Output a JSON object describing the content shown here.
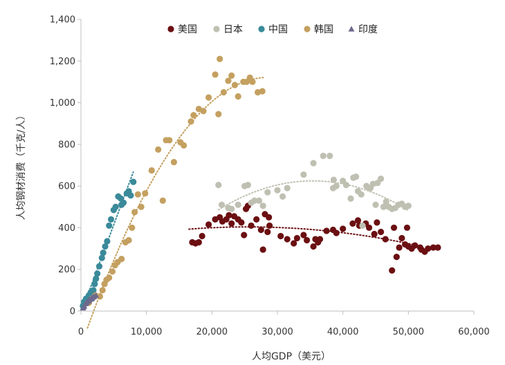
{
  "chart_data": {
    "type": "scatter",
    "title": "",
    "xlabel": "人均GDP（美元）",
    "ylabel": "人均钢材消费（千克/人）",
    "xlim": [
      0,
      60000
    ],
    "ylim": [
      0,
      1400
    ],
    "xticks": [
      0,
      10000,
      20000,
      30000,
      40000,
      50000,
      60000
    ],
    "xtick_labels": [
      "0",
      "10,000",
      "20,000",
      "30,000",
      "40,000",
      "50,000",
      "60,000"
    ],
    "yticks": [
      0,
      200,
      400,
      600,
      800,
      1000,
      1200,
      1400
    ],
    "ytick_labels": [
      "0",
      "200",
      "400",
      "600",
      "800",
      "1,000",
      "1,200",
      "1,400"
    ],
    "legend_position": "top-center",
    "series": [
      {
        "name": "美国",
        "color": "#6b0f12",
        "marker": "circle",
        "trendline": {
          "type": "poly2",
          "x_range": [
            16500,
            52000
          ]
        },
        "points": [
          [
            17000,
            330
          ],
          [
            17500,
            325
          ],
          [
            18000,
            330
          ],
          [
            18500,
            360
          ],
          [
            19500,
            415
          ],
          [
            20500,
            440
          ],
          [
            21200,
            450
          ],
          [
            21600,
            430
          ],
          [
            22200,
            440
          ],
          [
            22600,
            460
          ],
          [
            23000,
            420
          ],
          [
            23400,
            455
          ],
          [
            24000,
            440
          ],
          [
            24500,
            425
          ],
          [
            24900,
            365
          ],
          [
            25200,
            490
          ],
          [
            25500,
            505
          ],
          [
            26000,
            410
          ],
          [
            26800,
            440
          ],
          [
            27500,
            390
          ],
          [
            27800,
            295
          ],
          [
            28100,
            465
          ],
          [
            28500,
            380
          ],
          [
            28700,
            450
          ],
          [
            28800,
            410
          ],
          [
            30500,
            360
          ],
          [
            31500,
            345
          ],
          [
            32500,
            325
          ],
          [
            33000,
            350
          ],
          [
            34000,
            365
          ],
          [
            34500,
            340
          ],
          [
            35500,
            310
          ],
          [
            35800,
            345
          ],
          [
            36200,
            330
          ],
          [
            36500,
            345
          ],
          [
            37500,
            385
          ],
          [
            38500,
            390
          ],
          [
            39000,
            375
          ],
          [
            40000,
            395
          ],
          [
            41500,
            420
          ],
          [
            42300,
            435
          ],
          [
            42500,
            410
          ],
          [
            43500,
            420
          ],
          [
            44000,
            400
          ],
          [
            44800,
            370
          ],
          [
            45200,
            425
          ],
          [
            45800,
            380
          ],
          [
            46500,
            345
          ],
          [
            47500,
            195
          ],
          [
            47800,
            400
          ],
          [
            48200,
            260
          ],
          [
            48600,
            305
          ],
          [
            49000,
            350
          ],
          [
            49500,
            320
          ],
          [
            49800,
            400
          ],
          [
            50000,
            310
          ],
          [
            50500,
            300
          ],
          [
            51000,
            315
          ],
          [
            51800,
            305
          ],
          [
            52000,
            295
          ],
          [
            52500,
            285
          ],
          [
            53000,
            300
          ],
          [
            53800,
            305
          ],
          [
            54500,
            305
          ]
        ]
      },
      {
        "name": "日本",
        "color": "#bfc0b2",
        "marker": "circle",
        "trendline": {
          "type": "poly2",
          "x_range": [
            21000,
            50000
          ]
        },
        "points": [
          [
            21000,
            605
          ],
          [
            21500,
            510
          ],
          [
            22500,
            495
          ],
          [
            23000,
            490
          ],
          [
            24000,
            510
          ],
          [
            25000,
            600
          ],
          [
            25500,
            605
          ],
          [
            26000,
            520
          ],
          [
            26500,
            530
          ],
          [
            27200,
            530
          ],
          [
            27800,
            505
          ],
          [
            28500,
            570
          ],
          [
            30000,
            580
          ],
          [
            30800,
            550
          ],
          [
            31500,
            590
          ],
          [
            34000,
            655
          ],
          [
            35500,
            710
          ],
          [
            37000,
            745
          ],
          [
            38000,
            745
          ],
          [
            38500,
            590
          ],
          [
            38600,
            630
          ],
          [
            39000,
            600
          ],
          [
            40000,
            625
          ],
          [
            40500,
            605
          ],
          [
            41200,
            540
          ],
          [
            41600,
            640
          ],
          [
            42000,
            645
          ],
          [
            42300,
            575
          ],
          [
            42800,
            560
          ],
          [
            43000,
            410
          ],
          [
            43600,
            600
          ],
          [
            44000,
            590
          ],
          [
            44200,
            590
          ],
          [
            44600,
            610
          ],
          [
            45000,
            510
          ],
          [
            45300,
            615
          ],
          [
            45800,
            635
          ],
          [
            46200,
            500
          ],
          [
            46600,
            525
          ],
          [
            47000,
            500
          ],
          [
            47500,
            490
          ],
          [
            48000,
            495
          ],
          [
            48500,
            510
          ],
          [
            49000,
            515
          ],
          [
            49500,
            500
          ],
          [
            50000,
            505
          ]
        ]
      },
      {
        "name": "中国",
        "color": "#3a8a9a",
        "marker": "circle",
        "trendline": {
          "type": "linear",
          "x_range": [
            200,
            8000
          ]
        },
        "points": [
          [
            300,
            25
          ],
          [
            500,
            45
          ],
          [
            800,
            60
          ],
          [
            1200,
            75
          ],
          [
            1500,
            90
          ],
          [
            1900,
            100
          ],
          [
            2100,
            130
          ],
          [
            2300,
            155
          ],
          [
            2500,
            180
          ],
          [
            2800,
            215
          ],
          [
            3200,
            255
          ],
          [
            3400,
            280
          ],
          [
            3700,
            310
          ],
          [
            4000,
            335
          ],
          [
            4300,
            410
          ],
          [
            4600,
            440
          ],
          [
            5000,
            485
          ],
          [
            5300,
            500
          ],
          [
            5700,
            550
          ],
          [
            6200,
            510
          ],
          [
            6500,
            520
          ],
          [
            7000,
            565
          ],
          [
            7300,
            575
          ],
          [
            7600,
            555
          ],
          [
            8000,
            620
          ],
          [
            6100,
            540
          ]
        ]
      },
      {
        "name": "韩国",
        "color": "#c4a060",
        "marker": "circle",
        "trendline": {
          "type": "poly2",
          "x_range": [
            1000,
            28000
          ]
        },
        "points": [
          [
            1200,
            40
          ],
          [
            1700,
            60
          ],
          [
            2200,
            75
          ],
          [
            2900,
            70
          ],
          [
            3300,
            100
          ],
          [
            3600,
            130
          ],
          [
            3900,
            150
          ],
          [
            4300,
            160
          ],
          [
            4800,
            190
          ],
          [
            5200,
            220
          ],
          [
            5600,
            235
          ],
          [
            6200,
            250
          ],
          [
            6800,
            330
          ],
          [
            7300,
            340
          ],
          [
            7800,
            400
          ],
          [
            8200,
            475
          ],
          [
            8700,
            560
          ],
          [
            9200,
            500
          ],
          [
            9800,
            565
          ],
          [
            10800,
            675
          ],
          [
            11800,
            775
          ],
          [
            12500,
            530
          ],
          [
            13000,
            820
          ],
          [
            13500,
            820
          ],
          [
            14200,
            715
          ],
          [
            15200,
            810
          ],
          [
            15700,
            795
          ],
          [
            16800,
            910
          ],
          [
            17200,
            940
          ],
          [
            18000,
            970
          ],
          [
            18700,
            960
          ],
          [
            19500,
            1025
          ],
          [
            20500,
            1135
          ],
          [
            21000,
            945
          ],
          [
            21200,
            1210
          ],
          [
            21800,
            1050
          ],
          [
            22500,
            1105
          ],
          [
            23000,
            1130
          ],
          [
            23500,
            1085
          ],
          [
            24000,
            1030
          ],
          [
            24800,
            1100
          ],
          [
            25300,
            1100
          ],
          [
            25800,
            1120
          ],
          [
            26200,
            1100
          ],
          [
            27000,
            1050
          ],
          [
            27700,
            1055
          ]
        ]
      },
      {
        "name": "印度",
        "color": "#6d6a8e",
        "marker": "triangle",
        "trendline": null,
        "points": [
          [
            300,
            15
          ],
          [
            500,
            25
          ],
          [
            700,
            35
          ],
          [
            900,
            42
          ],
          [
            1100,
            50
          ],
          [
            1300,
            55
          ],
          [
            1500,
            58
          ],
          [
            1700,
            62
          ],
          [
            2000,
            70
          ],
          [
            2300,
            75
          ],
          [
            400,
            20
          ],
          [
            800,
            40
          ],
          [
            1200,
            48
          ],
          [
            1600,
            60
          ],
          [
            1900,
            68
          ]
        ]
      }
    ]
  }
}
